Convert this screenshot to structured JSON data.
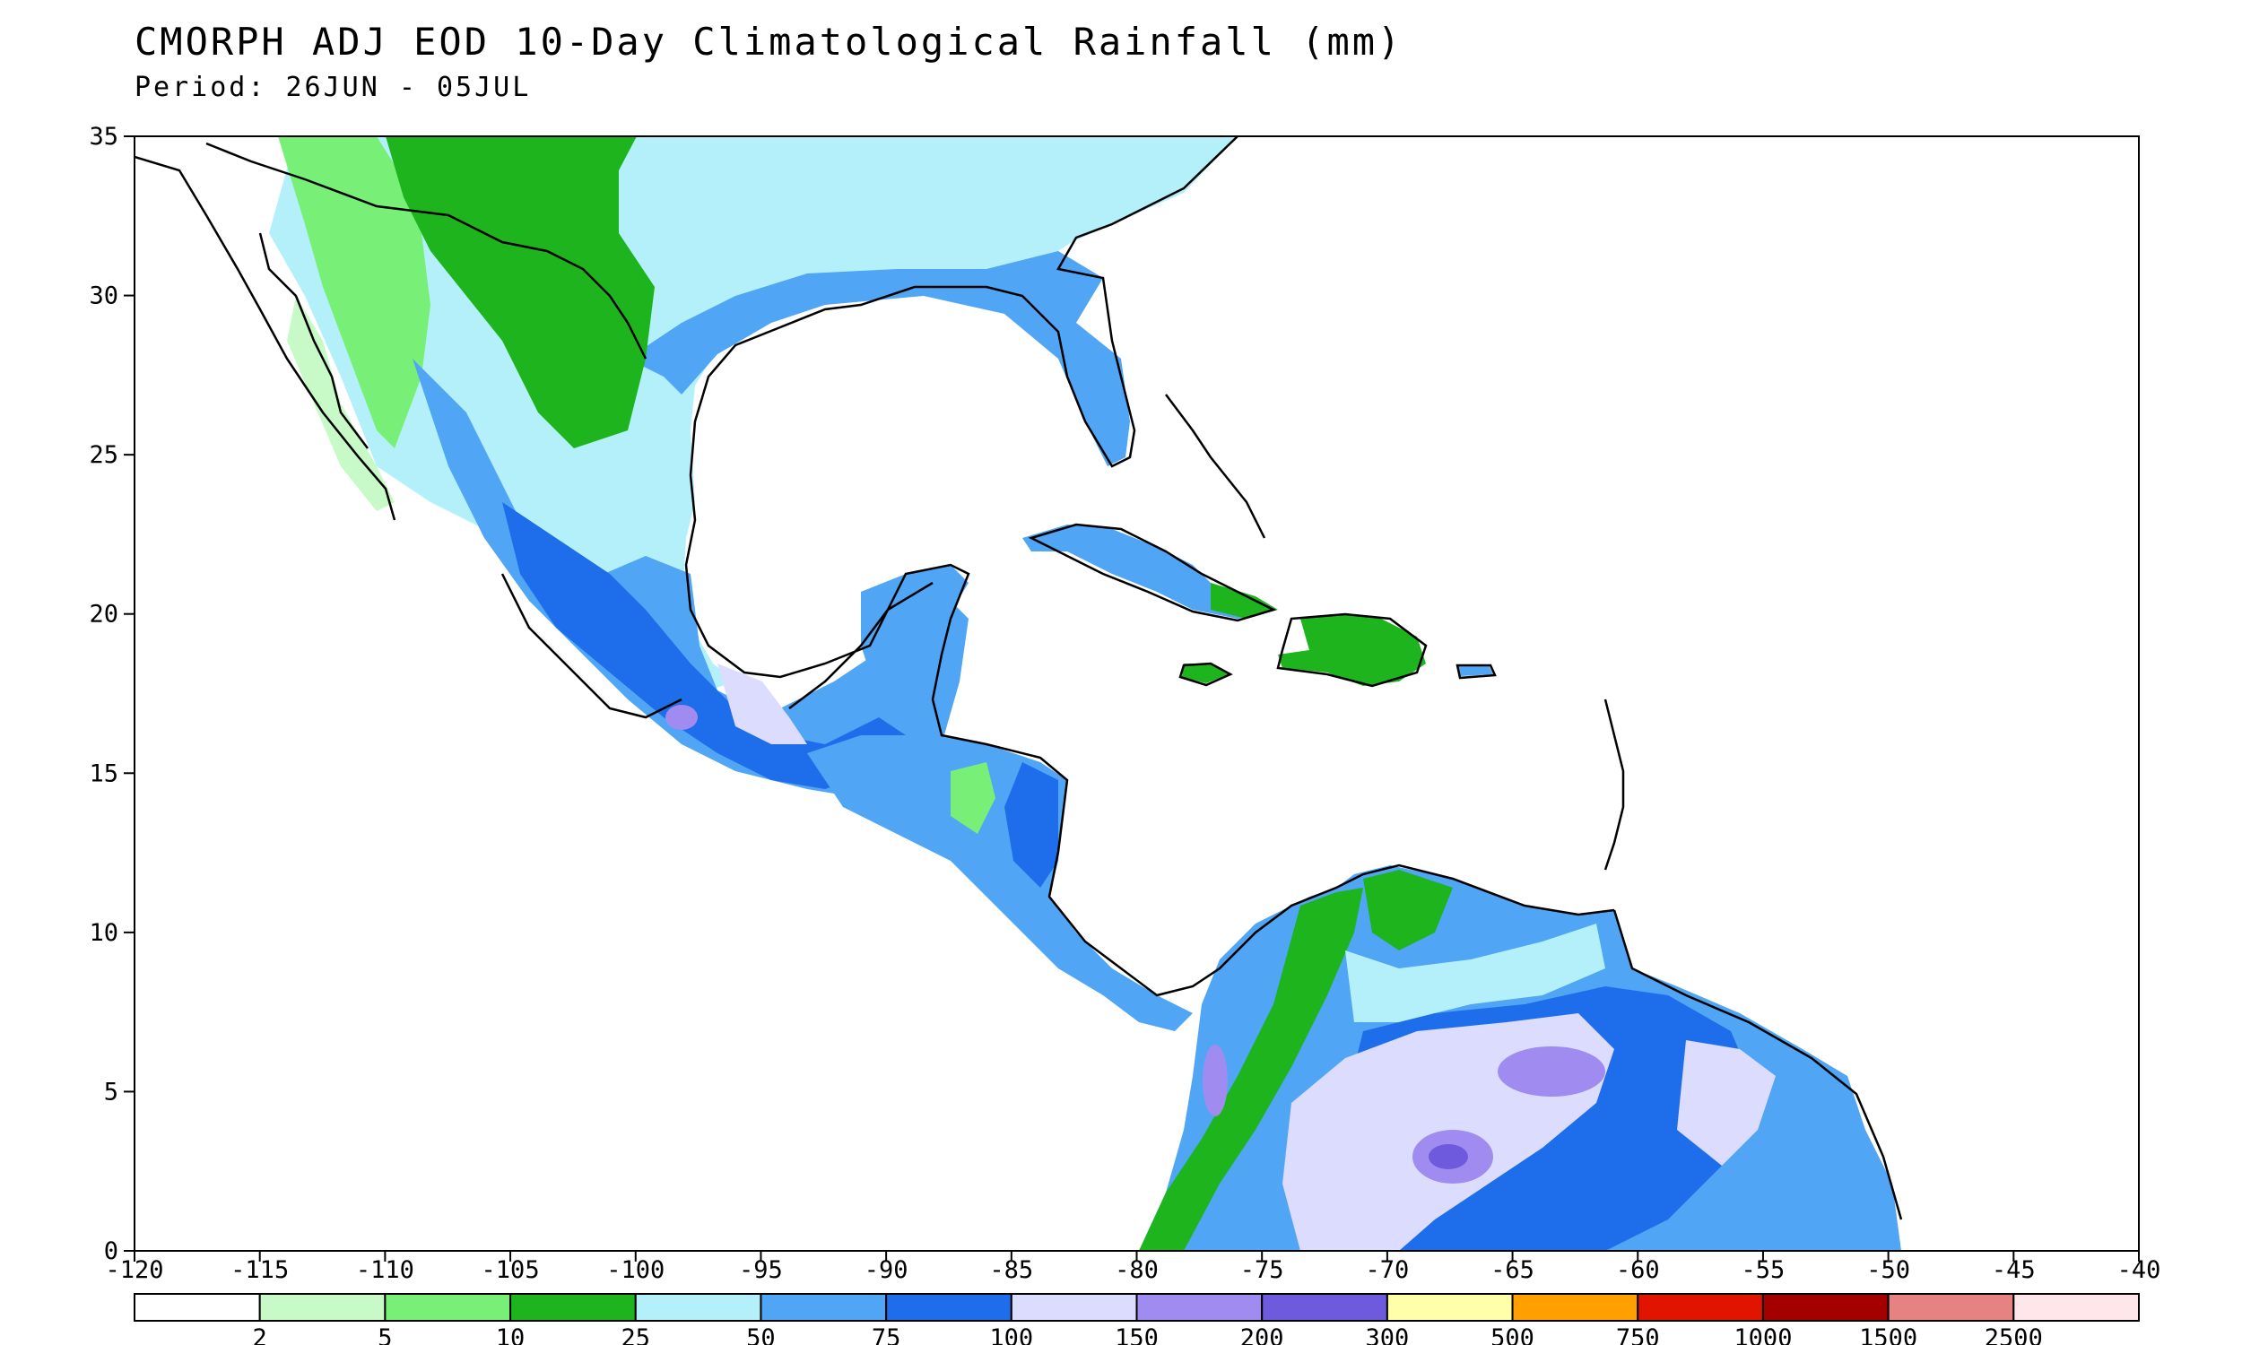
{
  "title": "CMORPH ADJ EOD 10-Day Climatological Rainfall (mm)",
  "subtitle": "Period: 26JUN - 05JUL",
  "map": {
    "lon_range": [
      -120,
      -40
    ],
    "lat_range": [
      0,
      35
    ],
    "lon_ticks": [
      "-120",
      "-115",
      "-110",
      "-105",
      "-100",
      "-95",
      "-90",
      "-85",
      "-80",
      "-75",
      "-70",
      "-65",
      "-60",
      "-55",
      "-50",
      "-45",
      "-40"
    ],
    "lat_ticks": [
      "0",
      "5",
      "10",
      "15",
      "20",
      "25",
      "30",
      "35"
    ]
  },
  "legend": {
    "colors": [
      "#ffffff",
      "#c8fac8",
      "#78f078",
      "#1eb41e",
      "#b4f0fa",
      "#50a5f5",
      "#1e6eeb",
      "#dcdcff",
      "#a08cf0",
      "#6e5adc",
      "#ffffaa",
      "#ffa000",
      "#e11400",
      "#a50000",
      "#e68282",
      "#ffe6eb"
    ],
    "labels": [
      "2",
      "5",
      "10",
      "25",
      "50",
      "75",
      "100",
      "150",
      "200",
      "300",
      "500",
      "750",
      "1000",
      "1500",
      "2500"
    ]
  }
}
